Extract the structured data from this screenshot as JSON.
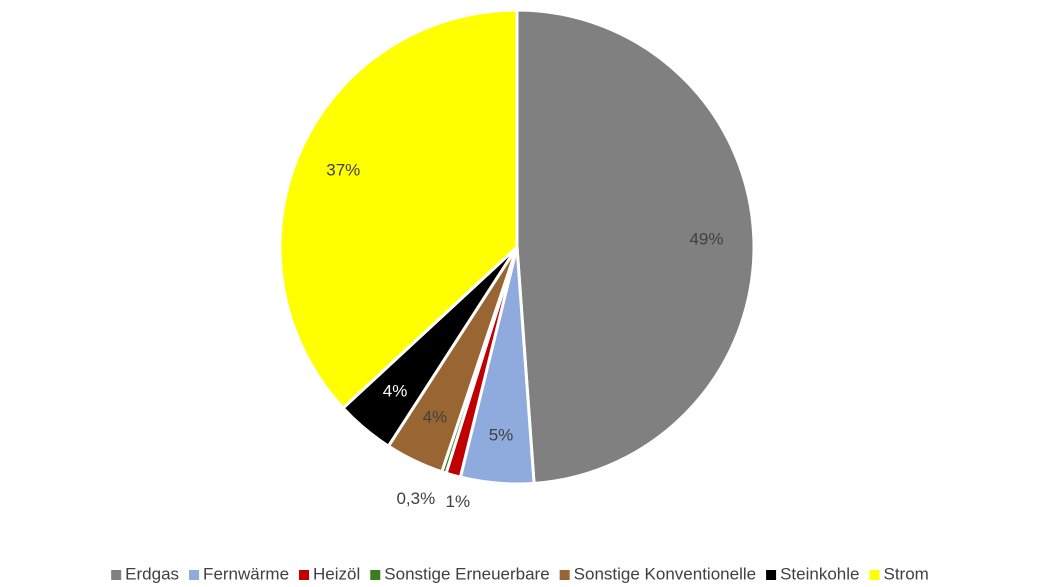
{
  "chart_data": {
    "type": "pie",
    "categories": [
      "Erdgas",
      "Fernwärme",
      "Heizöl",
      "Sonstige Erneuerbare",
      "Sonstige Konventionelle",
      "Steinkohle",
      "Strom"
    ],
    "values": [
      49,
      5,
      1,
      0.3,
      4,
      4,
      37
    ],
    "value_labels": [
      "49%",
      "5%",
      "1%",
      "0,3%",
      "4%",
      "4%",
      "37%"
    ],
    "colors": [
      "#808080",
      "#8faadc",
      "#c00000",
      "#3a7d22",
      "#996633",
      "#000000",
      "#ffff00"
    ],
    "legend": "bottom"
  }
}
